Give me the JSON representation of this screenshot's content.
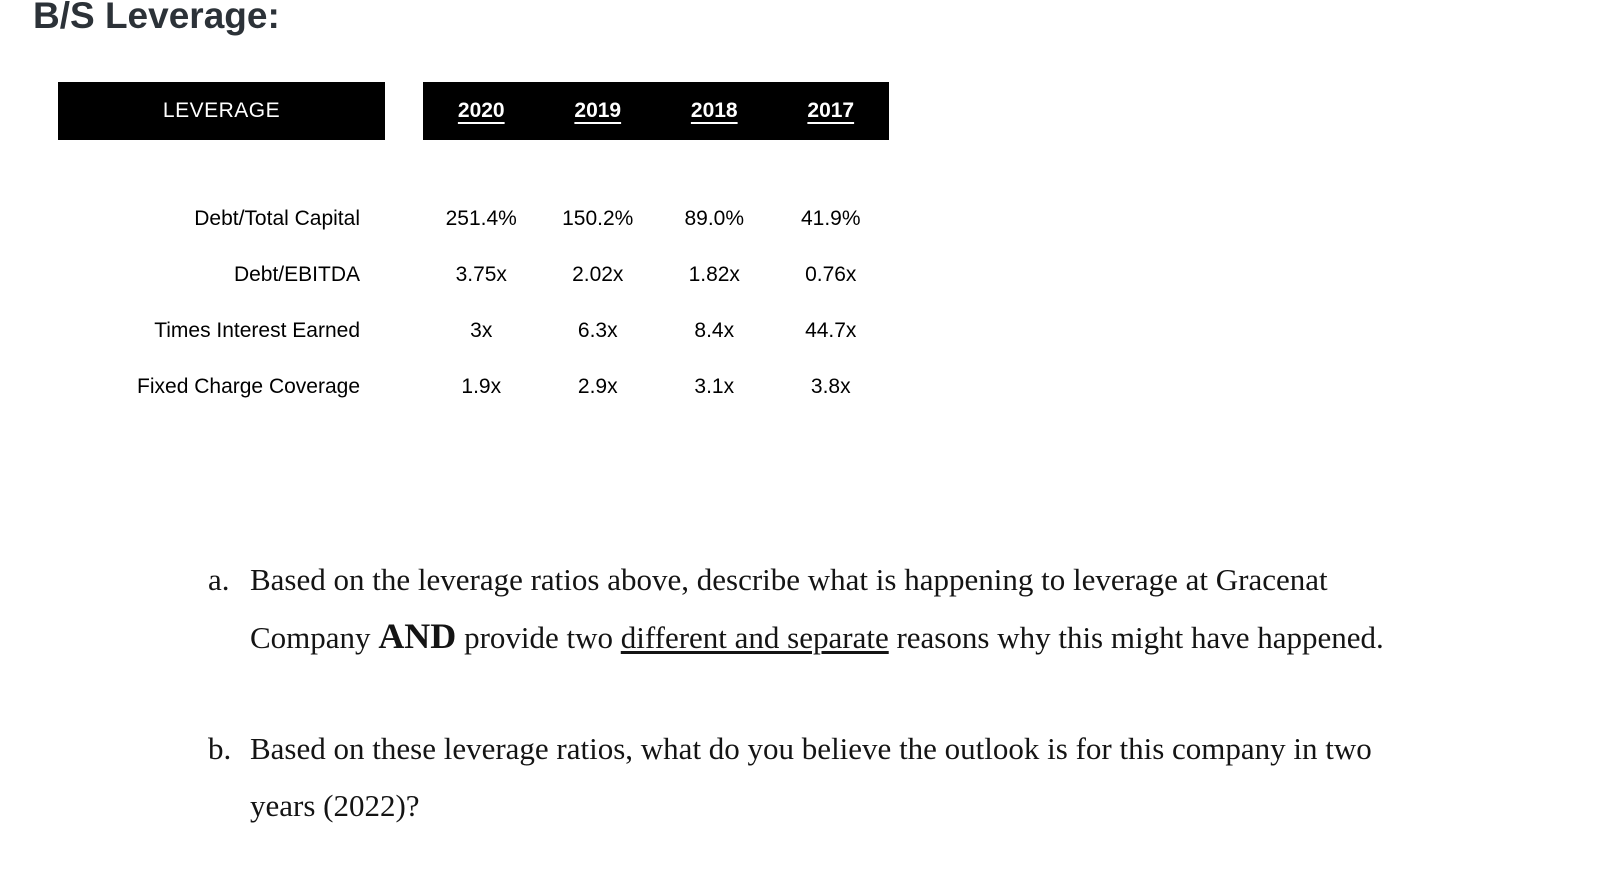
{
  "page": {
    "title": "B/S Leverage:"
  },
  "table": {
    "header_left": "LEVERAGE",
    "years": [
      "2020",
      "2019",
      "2018",
      "2017"
    ],
    "rows": [
      {
        "label": "Debt/Total Capital",
        "values": [
          "251.4%",
          "150.2%",
          "89.0%",
          "41.9%"
        ]
      },
      {
        "label": "Debt/EBITDA",
        "values": [
          "3.75x",
          "2.02x",
          "1.82x",
          "0.76x"
        ]
      },
      {
        "label": "Times Interest Earned",
        "values": [
          "3x",
          "6.3x",
          "8.4x",
          "44.7x"
        ]
      },
      {
        "label": "Fixed Charge Coverage",
        "values": [
          "1.9x",
          "2.9x",
          "3.1x",
          "3.8x"
        ]
      }
    ]
  },
  "questions": [
    {
      "label": "a.",
      "segments": [
        {
          "text": "Based on the leverage ratios above, describe what is happening to leverage at Gracenat Company "
        },
        {
          "text": "AND",
          "style": "bold_large"
        },
        {
          "text": " provide two "
        },
        {
          "text": "different and separate",
          "style": "underline"
        },
        {
          "text": " reasons why this might have happened."
        }
      ]
    },
    {
      "label": "b.",
      "segments": [
        {
          "text": "Based on these leverage ratios, what do you believe the outlook is for this company in two years (2022)?"
        }
      ]
    }
  ],
  "colors": {
    "header_bg": "#000000",
    "header_text": "#ffffff",
    "title_text": "#2c3238",
    "body_text": "#000000"
  }
}
